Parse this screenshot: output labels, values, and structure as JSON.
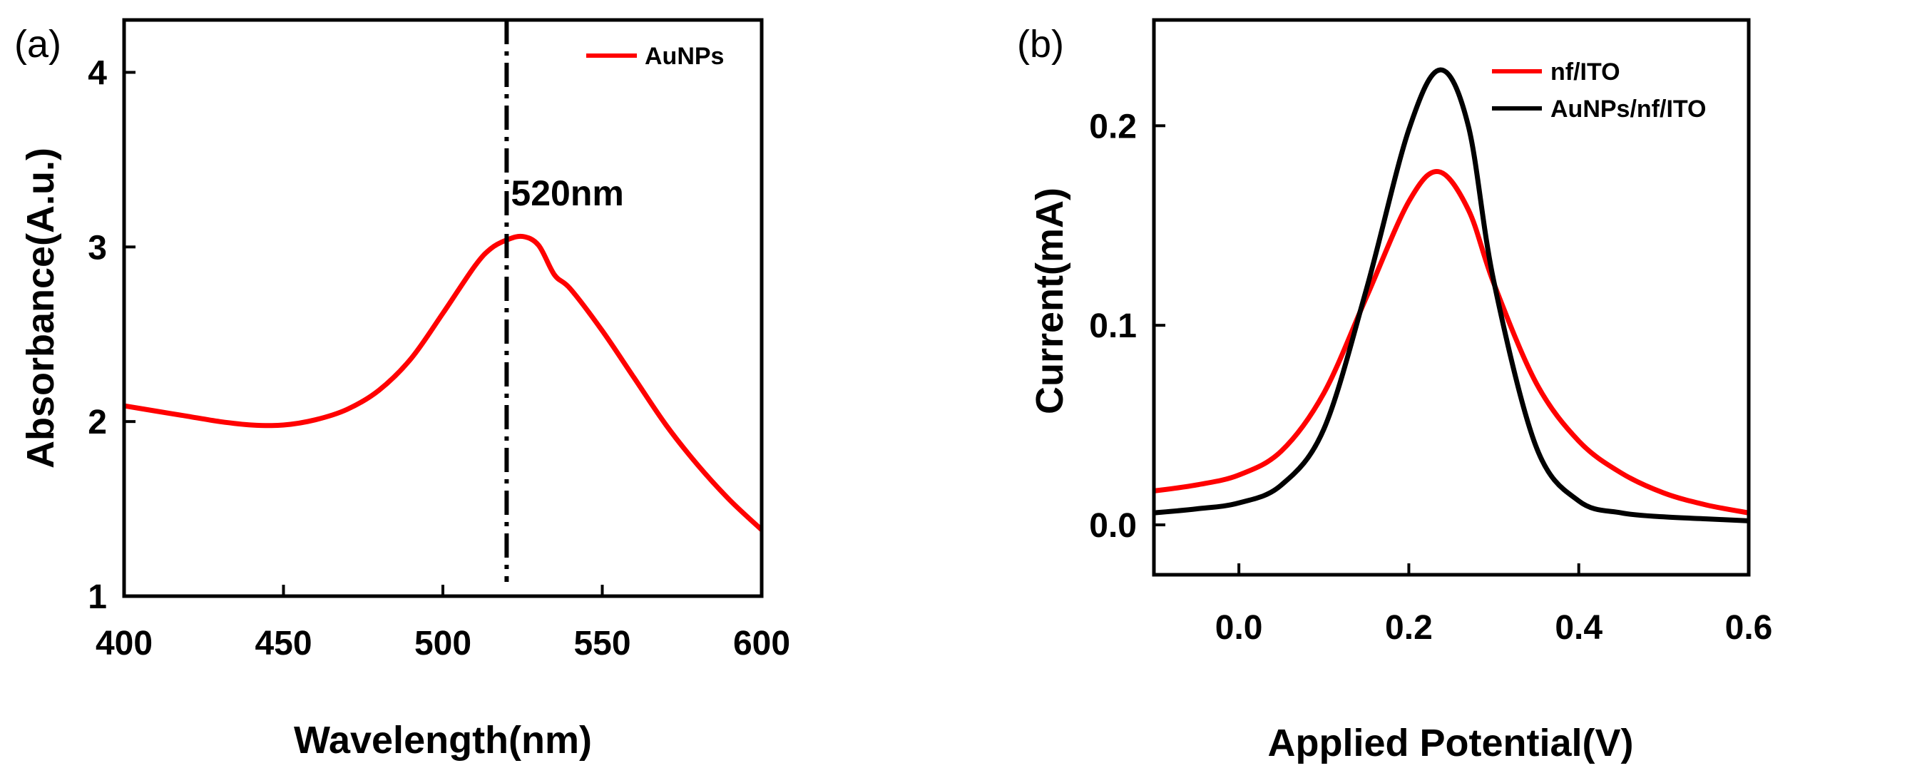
{
  "chart_data": [
    {
      "panel_label": "(a)",
      "type": "line",
      "xlabel": "Wavelength(nm)",
      "ylabel": "Absorbance(A.u.)",
      "xlim": [
        400,
        600
      ],
      "ylim": [
        1,
        4.3
      ],
      "xticks": [
        "400",
        "450",
        "500",
        "550",
        "600"
      ],
      "yticks": [
        "1",
        "2",
        "3",
        "4"
      ],
      "legend_position": "top-right",
      "annotation": {
        "text": "520nm",
        "x": 520
      },
      "series": [
        {
          "name": "AuNPs",
          "color": "#ff0000",
          "x": [
            400,
            410,
            420,
            430,
            440,
            450,
            460,
            470,
            480,
            490,
            500,
            510,
            515,
            520,
            525,
            530,
            535,
            540,
            550,
            560,
            570,
            580,
            590,
            600
          ],
          "y": [
            2.09,
            2.06,
            2.03,
            2.0,
            1.98,
            1.98,
            2.01,
            2.07,
            2.18,
            2.36,
            2.62,
            2.89,
            2.99,
            3.04,
            3.06,
            3.01,
            2.84,
            2.76,
            2.52,
            2.25,
            1.98,
            1.75,
            1.55,
            1.38
          ]
        }
      ]
    },
    {
      "panel_label": "(b)",
      "type": "line",
      "xlabel": "Applied Potential(V)",
      "ylabel": "Current(mA)",
      "xlim": [
        -0.1,
        0.6
      ],
      "ylim": [
        -0.025,
        0.253
      ],
      "xticks": [
        "0.0",
        "0.2",
        "0.4",
        "0.6"
      ],
      "yticks": [
        "0.0",
        "0.1",
        "0.2"
      ],
      "legend_position": "top-right",
      "series": [
        {
          "name": "nf/ITO",
          "color": "#ff0000",
          "x": [
            -0.1,
            -0.05,
            0.0,
            0.05,
            0.1,
            0.15,
            0.2,
            0.235,
            0.27,
            0.3,
            0.35,
            0.4,
            0.45,
            0.5,
            0.55,
            0.6
          ],
          "y": [
            0.017,
            0.02,
            0.025,
            0.037,
            0.066,
            0.114,
            0.162,
            0.177,
            0.158,
            0.121,
            0.071,
            0.042,
            0.026,
            0.016,
            0.01,
            0.006
          ]
        },
        {
          "name": "AuNPs/nf/ITO",
          "color": "#000000",
          "x": [
            -0.1,
            -0.05,
            0.0,
            0.05,
            0.1,
            0.15,
            0.2,
            0.237,
            0.27,
            0.3,
            0.35,
            0.4,
            0.45,
            0.5,
            0.55,
            0.6
          ],
          "y": [
            0.006,
            0.008,
            0.011,
            0.02,
            0.048,
            0.118,
            0.198,
            0.228,
            0.2,
            0.122,
            0.039,
            0.012,
            0.006,
            0.004,
            0.003,
            0.002
          ]
        }
      ]
    }
  ]
}
